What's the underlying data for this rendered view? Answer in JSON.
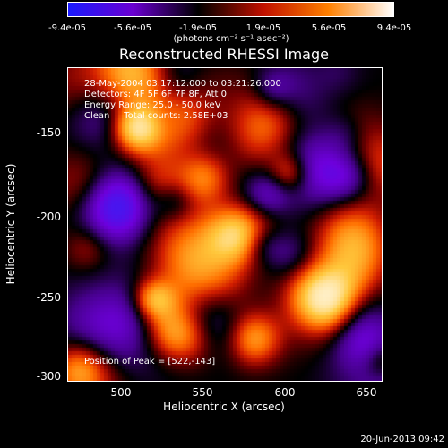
{
  "colorbar": {
    "tick_labels": [
      "-9.4e-05",
      "-5.6e-05",
      "-1.9e-05",
      "1.9e-05",
      "5.6e-05",
      "9.4e-05"
    ],
    "unit_label": "(photons cm⁻² s⁻¹ asec⁻²)",
    "range": [
      -9.4e-05,
      9.4e-05
    ],
    "colors": [
      "#1a1aff",
      "#6a00d0",
      "#000000",
      "#c01000",
      "#ff8000",
      "#ffffff"
    ]
  },
  "title": "Reconstructed RHESSI Image",
  "info": {
    "line1": "28-May-2004 03:17:12.000 to 03:21:26.000",
    "line2": "Detectors: 4F 5F 6F 7F 8F, Att 0",
    "line3": "Energy Range: 25.0 - 50.0 keV",
    "line4": "Clean     Total counts: 2.58E+03"
  },
  "peak_label": "Position of Peak = [522,-143]",
  "axes": {
    "xlabel": "Heliocentric X (arcsec)",
    "ylabel": "Heliocentric Y (arcsec)",
    "xticks": [
      "500",
      "550",
      "600",
      "650"
    ],
    "xtick_values": [
      500,
      550,
      600,
      650
    ],
    "yticks": [
      "-150",
      "-200",
      "-250",
      "-300"
    ],
    "ytick_values": [
      -150,
      -200,
      -250,
      -300
    ],
    "xlim": [
      466,
      660
    ],
    "ylim": [
      -303,
      -110
    ]
  },
  "footer": "20-Jun-2013 09:42"
}
